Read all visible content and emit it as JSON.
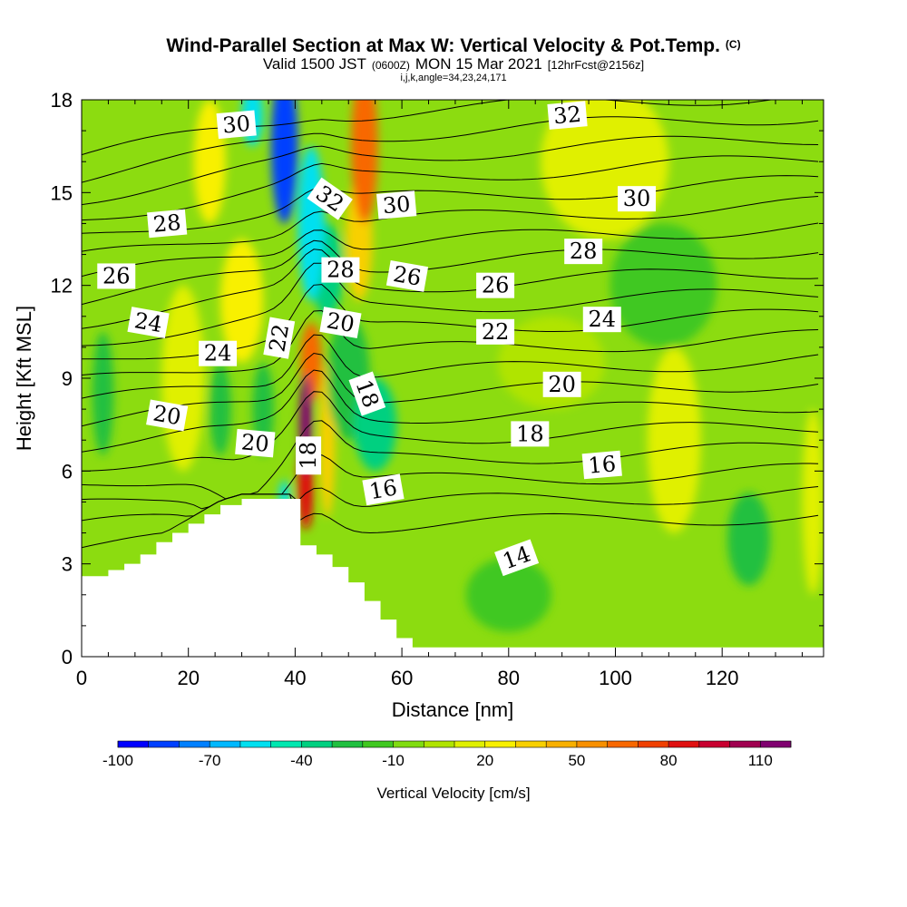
{
  "header": {
    "title": "Wind-Parallel Section at Max W: Vertical Velocity & Pot.Temp.",
    "title_mark": "(C)",
    "valid_prefix": "Valid 1500 JST",
    "valid_utc": "(0600Z)",
    "valid_date": "MON 15 Mar 2021",
    "forecast": "[12hrFcst@2156z]",
    "section_info": "i,j,k,angle=34,23,24,171"
  },
  "chart_data": {
    "type": "heatmap",
    "xlabel": "Distance [nm]",
    "ylabel": "Height [Kft MSL]",
    "xlim": [
      0,
      139
    ],
    "ylim": [
      0,
      18
    ],
    "x_ticks": [
      0,
      20,
      40,
      60,
      80,
      100,
      120
    ],
    "y_ticks": [
      0,
      3,
      6,
      9,
      12,
      15,
      18
    ],
    "x_minor_step": 5,
    "y_minor_step": 1,
    "fill_field": "Vertical Velocity",
    "fill_units": "cm/s",
    "colorbar_label": "Vertical Velocity [cm/s]",
    "colorbar_ticks": [
      -100,
      -70,
      -40,
      -10,
      20,
      50,
      80,
      110
    ],
    "colorbar_levels": [
      -100,
      -90,
      -80,
      -70,
      -60,
      -50,
      -40,
      -30,
      -20,
      -10,
      0,
      10,
      20,
      30,
      40,
      50,
      60,
      70,
      80,
      90,
      100,
      110,
      120
    ],
    "colorbar_colors": [
      "#0000ff",
      "#0040ff",
      "#0080ff",
      "#00b8ff",
      "#00e0f0",
      "#00e8b0",
      "#00d080",
      "#20c040",
      "#40c820",
      "#80dc10",
      "#b0e400",
      "#e0f000",
      "#f8f000",
      "#f8d000",
      "#f8b000",
      "#f89000",
      "#f86800",
      "#f04000",
      "#e01010",
      "#c80030",
      "#a00050",
      "#800070"
    ],
    "velocity_centers": [
      {
        "x": 38,
        "y": 16.5,
        "value": -90,
        "sx": 2.5,
        "sy": 2.5
      },
      {
        "x": 43,
        "y": 14,
        "value": -60,
        "sx": 2.5,
        "sy": 2.5
      },
      {
        "x": 46,
        "y": 12.5,
        "value": -35,
        "sx": 3,
        "sy": 1.5
      },
      {
        "x": 32,
        "y": 17.5,
        "value": -60,
        "sx": 2,
        "sy": 1
      },
      {
        "x": 53,
        "y": 16.5,
        "value": 65,
        "sx": 2.5,
        "sy": 2.5
      },
      {
        "x": 52,
        "y": 13.5,
        "value": 30,
        "sx": 2.5,
        "sy": 2
      },
      {
        "x": 42,
        "y": 7.5,
        "value": 110,
        "sx": 1.2,
        "sy": 1.6
      },
      {
        "x": 42,
        "y": 5.5,
        "value": 85,
        "sx": 1.5,
        "sy": 1.4
      },
      {
        "x": 43,
        "y": 9.5,
        "value": 60,
        "sx": 2,
        "sy": 1.3
      },
      {
        "x": 46,
        "y": 7,
        "value": 30,
        "sx": 1.5,
        "sy": 2.5
      },
      {
        "x": 38,
        "y": 5.2,
        "value": -60,
        "sx": 1,
        "sy": 0.5
      },
      {
        "x": 55,
        "y": 7.5,
        "value": -35,
        "sx": 4,
        "sy": 1.5
      },
      {
        "x": 50,
        "y": 9,
        "value": -30,
        "sx": 4,
        "sy": 2
      },
      {
        "x": 24,
        "y": 16,
        "value": 20,
        "sx": 3,
        "sy": 2
      },
      {
        "x": 30,
        "y": 11.5,
        "value": 20,
        "sx": 4,
        "sy": 2
      },
      {
        "x": 26,
        "y": 8,
        "value": -22,
        "sx": 2,
        "sy": 1.5
      },
      {
        "x": 34,
        "y": 8,
        "value": -22,
        "sx": 2,
        "sy": 1.5
      },
      {
        "x": 4,
        "y": 8.5,
        "value": -22,
        "sx": 2,
        "sy": 2
      },
      {
        "x": 19,
        "y": 9,
        "value": 10,
        "sx": 4,
        "sy": 3
      },
      {
        "x": 125,
        "y": 3.8,
        "value": -25,
        "sx": 4,
        "sy": 1.5
      },
      {
        "x": 111,
        "y": 7,
        "value": 10,
        "sx": 5,
        "sy": 3
      },
      {
        "x": 137,
        "y": 5,
        "value": 12,
        "sx": 2,
        "sy": 3
      },
      {
        "x": 109,
        "y": 12,
        "value": -20,
        "sx": 10,
        "sy": 2
      },
      {
        "x": 80,
        "y": 2,
        "value": -18,
        "sx": 8,
        "sy": 1.2
      },
      {
        "x": 98,
        "y": 16,
        "value": 10,
        "sx": 12,
        "sy": 2.5
      },
      {
        "x": 88,
        "y": 9.5,
        "value": 5,
        "sx": 10,
        "sy": 1.5
      }
    ],
    "contour_labels": [
      {
        "text": "30",
        "x": 29,
        "y": 17.2,
        "angle": -5
      },
      {
        "text": "32",
        "x": 46.5,
        "y": 14.8,
        "angle": 35
      },
      {
        "text": "32",
        "x": 91,
        "y": 17.5,
        "angle": -5
      },
      {
        "text": "30",
        "x": 59,
        "y": 14.6,
        "angle": -5
      },
      {
        "text": "30",
        "x": 104,
        "y": 14.8,
        "angle": 0
      },
      {
        "text": "28",
        "x": 16,
        "y": 14.0,
        "angle": -5
      },
      {
        "text": "28",
        "x": 48.5,
        "y": 12.5,
        "angle": 0
      },
      {
        "text": "28",
        "x": 94,
        "y": 13.1,
        "angle": 0
      },
      {
        "text": "26",
        "x": 6.5,
        "y": 12.3,
        "angle": 0
      },
      {
        "text": "26",
        "x": 61,
        "y": 12.3,
        "angle": 10
      },
      {
        "text": "26",
        "x": 77.5,
        "y": 12.0,
        "angle": 0
      },
      {
        "text": "24",
        "x": 12.5,
        "y": 10.8,
        "angle": 10
      },
      {
        "text": "24",
        "x": 25.5,
        "y": 9.8,
        "angle": 0
      },
      {
        "text": "24",
        "x": 97.5,
        "y": 10.9,
        "angle": 0
      },
      {
        "text": "22",
        "x": 37,
        "y": 10.3,
        "angle": -80
      },
      {
        "text": "22",
        "x": 77.5,
        "y": 10.5,
        "angle": 0
      },
      {
        "text": "20",
        "x": 48.5,
        "y": 10.8,
        "angle": 10
      },
      {
        "text": "20",
        "x": 90,
        "y": 8.8,
        "angle": 0
      },
      {
        "text": "20",
        "x": 16,
        "y": 7.8,
        "angle": 10
      },
      {
        "text": "20",
        "x": 32.5,
        "y": 6.9,
        "angle": 5
      },
      {
        "text": "18",
        "x": 53.5,
        "y": 8.5,
        "angle": 70
      },
      {
        "text": "18",
        "x": 42.5,
        "y": 6.5,
        "angle": -90
      },
      {
        "text": "18",
        "x": 84,
        "y": 7.2,
        "angle": 0
      },
      {
        "text": "16",
        "x": 56.5,
        "y": 5.4,
        "angle": -10
      },
      {
        "text": "16",
        "x": 97.5,
        "y": 6.2,
        "angle": -5
      },
      {
        "text": "14",
        "x": 81.5,
        "y": 3.2,
        "angle": -20
      }
    ]
  },
  "colors": {
    "background_field": "#8cdc10",
    "terrain": "#ffffff",
    "contour_line": "#000000"
  }
}
